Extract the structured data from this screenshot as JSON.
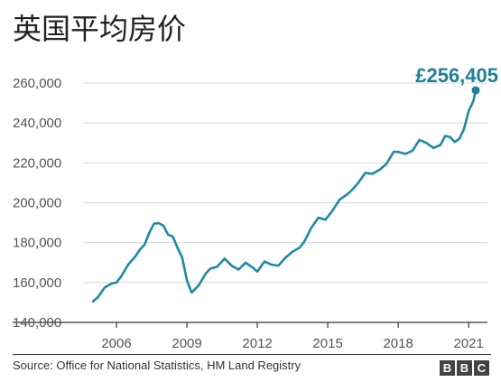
{
  "chart_data": {
    "type": "line",
    "title": "英国平均房价",
    "xlabel": "",
    "ylabel": "",
    "xlim": [
      2004.5,
      2021.8
    ],
    "ylim": [
      140000,
      260000
    ],
    "y_ticks": [
      140000,
      160000,
      180000,
      200000,
      220000,
      240000,
      260000
    ],
    "y_tick_labels": [
      "140,000",
      "160,000",
      "180,000",
      "200,000",
      "220,000",
      "240,000",
      "260,000"
    ],
    "x_ticks": [
      2006,
      2009,
      2012,
      2015,
      2018,
      2021
    ],
    "x_tick_labels": [
      "2006",
      "2009",
      "2012",
      "2015",
      "2018",
      "2021"
    ],
    "grid": "horizontal",
    "end_label": "£256,405",
    "series": [
      {
        "color": "#1e8aa4",
        "x": [
          2005.0,
          2005.2,
          2005.5,
          2005.8,
          2006.0,
          2006.2,
          2006.5,
          2006.8,
          2007.0,
          2007.2,
          2007.4,
          2007.6,
          2007.8,
          2008.0,
          2008.2,
          2008.4,
          2008.6,
          2008.8,
          2009.0,
          2009.2,
          2009.5,
          2009.8,
          2010.0,
          2010.3,
          2010.6,
          2010.9,
          2011.2,
          2011.5,
          2011.8,
          2012.0,
          2012.3,
          2012.6,
          2012.9,
          2013.2,
          2013.5,
          2013.8,
          2014.0,
          2014.3,
          2014.6,
          2014.9,
          2015.2,
          2015.5,
          2015.8,
          2016.0,
          2016.3,
          2016.6,
          2016.9,
          2017.2,
          2017.5,
          2017.8,
          2018.0,
          2018.3,
          2018.6,
          2018.9,
          2019.2,
          2019.5,
          2019.8,
          2020.0,
          2020.2,
          2020.4,
          2020.6,
          2020.8,
          2021.0,
          2021.2
        ],
        "y": [
          150500,
          152500,
          157500,
          159500,
          160000,
          163000,
          169000,
          173000,
          176500,
          179000,
          185000,
          189500,
          189800,
          188500,
          184000,
          183000,
          177500,
          172500,
          161000,
          155000,
          158500,
          164500,
          167000,
          168000,
          172000,
          168500,
          166500,
          170000,
          167500,
          165500,
          170500,
          169000,
          168500,
          172500,
          175500,
          177500,
          180500,
          187500,
          192500,
          191500,
          196000,
          201500,
          204000,
          206000,
          210000,
          215000,
          214500,
          216500,
          219500,
          225500,
          225500,
          224500,
          226000,
          231500,
          230000,
          227500,
          229000,
          233500,
          233000,
          230500,
          232000,
          237000,
          246000,
          251000
        ]
      }
    ],
    "end_point": {
      "x": 2021.3,
      "y": 256405
    }
  },
  "footer": {
    "source": "Source: Office for National Statistics, HM Land Registry",
    "logo_letters": [
      "B",
      "B",
      "C"
    ]
  }
}
